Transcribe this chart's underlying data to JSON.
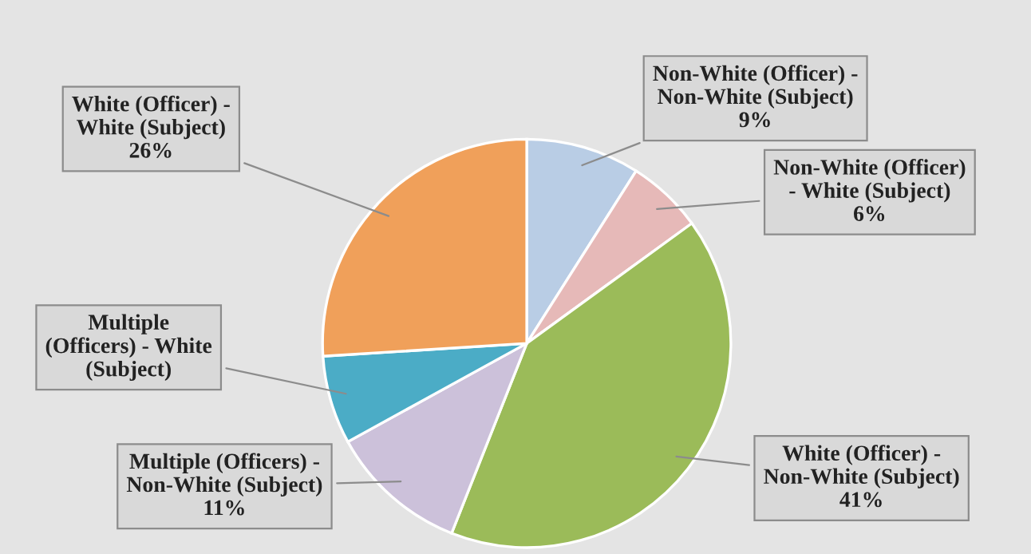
{
  "chart_data": {
    "type": "pie",
    "categories": [
      "Non-White (Officer) -\nNon-White (Subject)",
      "Non-White (Officer)\n- White (Subject)",
      "White (Officer) -\nNon-White (Subject)",
      "Multiple (Officers) -\nNon-White (Subject)",
      "Multiple\n(Officers) - White\n(Subject)",
      "White (Officer) -\nWhite (Subject)"
    ],
    "values": [
      9,
      6,
      41,
      11,
      7,
      26
    ],
    "value_labels": [
      "9%",
      "6%",
      "41%",
      "11%",
      null,
      "26%"
    ],
    "colors": [
      "#b9cde5",
      "#e6b9b8",
      "#9bbb59",
      "#ccc1da",
      "#4bacc6",
      "#f0a05a"
    ],
    "legend": false
  }
}
